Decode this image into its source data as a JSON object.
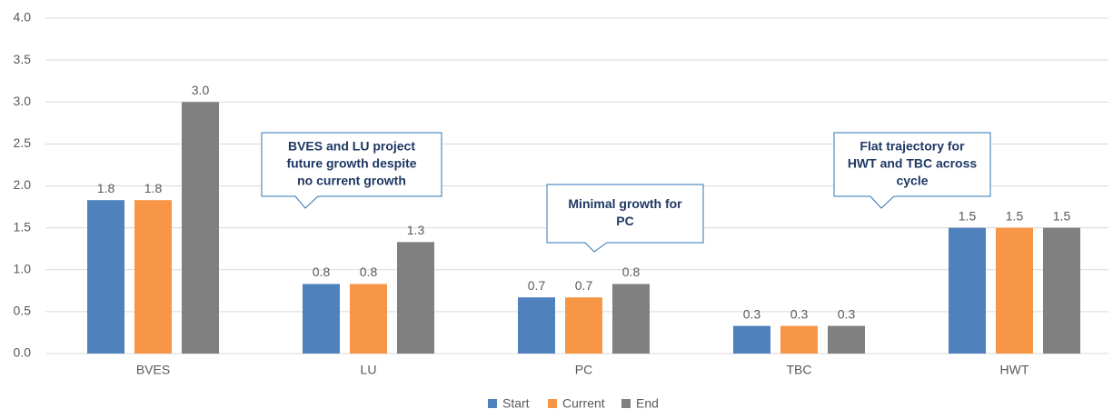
{
  "chart_data": {
    "type": "bar",
    "categories": [
      "BVES",
      "LU",
      "PC",
      "TBC",
      "HWT"
    ],
    "series": [
      {
        "name": "Start",
        "color": "#4f81bd",
        "values": [
          1.83,
          0.83,
          0.67,
          0.33,
          1.5
        ],
        "value_labels": [
          "1.8",
          "0.8",
          "0.7",
          "0.3",
          "1.5"
        ]
      },
      {
        "name": "Current",
        "color": "#f79646",
        "values": [
          1.83,
          0.83,
          0.67,
          0.33,
          1.5
        ],
        "value_labels": [
          "1.8",
          "0.8",
          "0.7",
          "0.3",
          "1.5"
        ]
      },
      {
        "name": "End",
        "color": "#808080",
        "values": [
          3.0,
          1.33,
          0.83,
          0.33,
          1.5
        ],
        "value_labels": [
          "3.0",
          "1.3",
          "0.8",
          "0.3",
          "1.5"
        ]
      }
    ],
    "ylim": [
      0,
      4
    ],
    "yticks": [
      {
        "value": 0,
        "label": "0.0"
      },
      0.5,
      {
        "value": 1,
        "label": "1.0"
      },
      1.5,
      {
        "value": 2,
        "label": "2.0"
      },
      2.5,
      {
        "value": 3,
        "label": "3.0"
      },
      3.5,
      {
        "value": 4,
        "label": "4.0"
      }
    ],
    "grid": true,
    "legend": "bottom",
    "annotations": [
      {
        "lines": [
          "BVES and LU project",
          "future growth despite",
          "no current growth"
        ]
      },
      {
        "lines": [
          "Minimal growth for",
          "PC"
        ]
      },
      {
        "lines": [
          "Flat trajectory for",
          "HWT and TBC across",
          "cycle"
        ]
      }
    ]
  }
}
